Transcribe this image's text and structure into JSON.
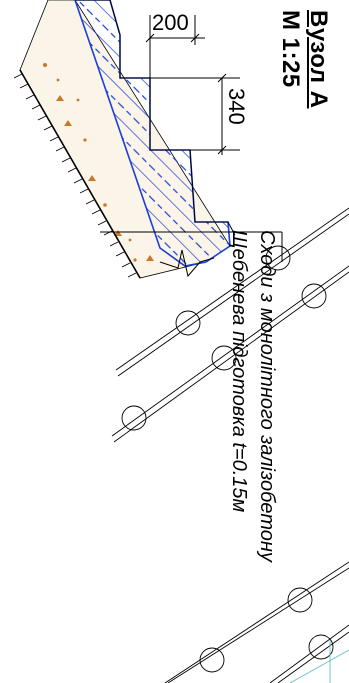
{
  "title": {
    "line1": "Вузол А",
    "line2": "М 1:25"
  },
  "dimensions": {
    "width": "200",
    "height": "340"
  },
  "annotations": {
    "line1": "Сходи з монолітного залізобетону",
    "line2": "Щебенева підготовка t=0.15м"
  },
  "colors": {
    "hatch": "#1a3fd6",
    "gravel": "#c9772a",
    "line": "#000000",
    "grid": "#66c0c0"
  }
}
